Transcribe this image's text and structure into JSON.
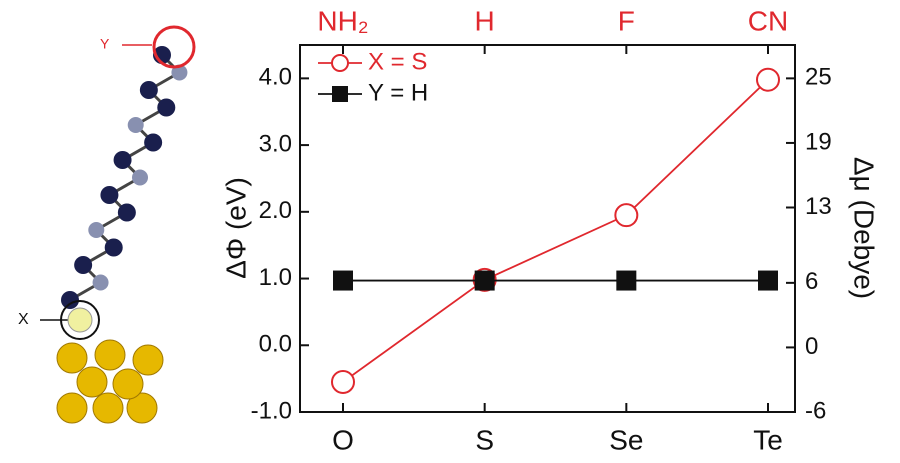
{
  "molecule": {
    "label_top": "Y",
    "label_bottom": "X"
  },
  "chart_data": {
    "type": "line",
    "categories": [
      "O",
      "S",
      "Se",
      "Te"
    ],
    "categories_top": [
      "NH₂",
      "H",
      "F",
      "CN"
    ],
    "ylabel": "ΔΦ (eV)",
    "y2label": "Δμ (Debye)",
    "ylim": [
      -1.0,
      4.5
    ],
    "yticks": [
      {
        "value": -1,
        "label": "-1.0"
      },
      {
        "value": 0,
        "label": "0.0"
      },
      {
        "value": 1,
        "label": "1.0"
      },
      {
        "value": 2,
        "label": "2.0"
      },
      {
        "value": 3,
        "label": "3.0"
      },
      {
        "value": 4,
        "label": "4.0"
      }
    ],
    "y2lim": [
      -6,
      28.1
    ],
    "y2ticks": [
      -6,
      0,
      6,
      13,
      19,
      25
    ],
    "legend": "upper left",
    "series": [
      {
        "name": "X = S",
        "color": "#e0282e",
        "marker": "open-circle",
        "values": [
          -0.55,
          0.98,
          1.95,
          3.98
        ]
      },
      {
        "name": "Y = H",
        "color": "#111111",
        "marker": "square",
        "values": [
          0.97,
          0.97,
          0.97,
          0.97
        ]
      }
    ]
  }
}
